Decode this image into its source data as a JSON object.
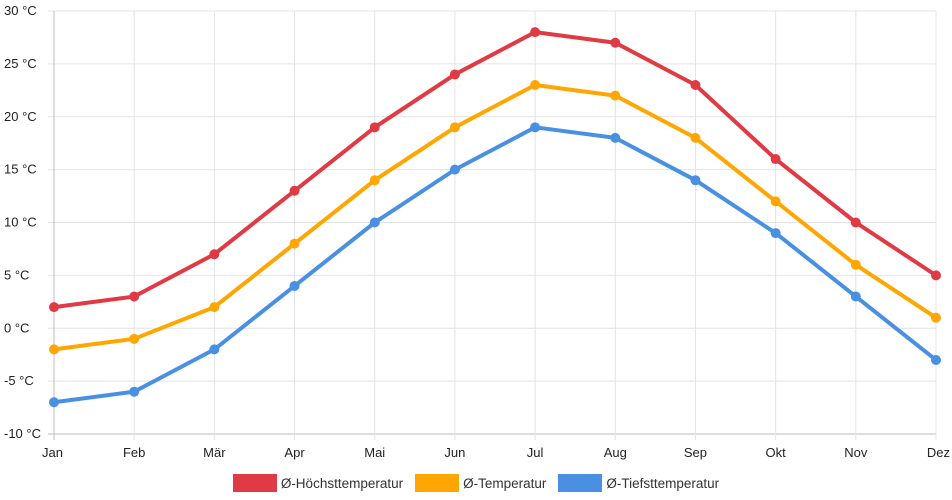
{
  "chart_data": {
    "type": "line",
    "categories": [
      "Jan",
      "Feb",
      "Mär",
      "Apr",
      "Mai",
      "Jun",
      "Jul",
      "Aug",
      "Sep",
      "Okt",
      "Nov",
      "Dez"
    ],
    "ylim": [
      -10,
      30
    ],
    "ystep": 5,
    "yunit": " °C",
    "grid": true,
    "legend_position": "bottom",
    "series": [
      {
        "name": "Ø-Höchsttemperatur",
        "color": "#e03a45",
        "values": [
          2,
          3,
          7,
          13,
          19,
          24,
          28,
          27,
          23,
          16,
          10,
          5
        ]
      },
      {
        "name": "Ø-Temperatur",
        "color": "#ffa600",
        "values": [
          -2,
          -1,
          2,
          8,
          14,
          19,
          23,
          22,
          18,
          12,
          6,
          1
        ]
      },
      {
        "name": "Ø-Tiefsttemperatur",
        "color": "#4a90e2",
        "values": [
          -7,
          -6,
          -2,
          4,
          10,
          15,
          19,
          18,
          14,
          9,
          3,
          -3
        ]
      }
    ]
  }
}
